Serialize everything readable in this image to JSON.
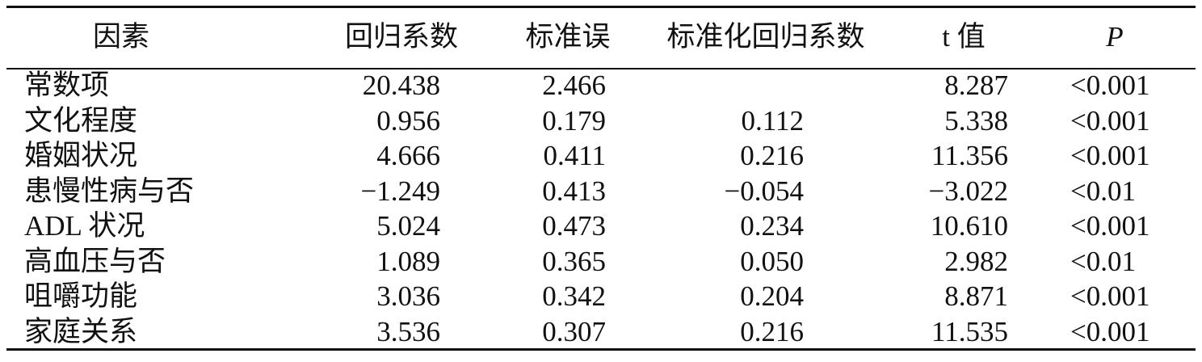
{
  "table": {
    "header": [
      "因素",
      "回归系数",
      "标准误",
      "标准化回归系数",
      "t 值",
      "P"
    ],
    "rows": [
      [
        "常数项",
        "20.438",
        "2.466",
        null,
        "8.287",
        "<0.001"
      ],
      [
        "文化程度",
        "0.956",
        "0.179",
        "0.112",
        "5.338",
        "<0.001"
      ],
      [
        "婚姻状况",
        "4.666",
        "0.411",
        "0.216",
        "11.356",
        "<0.001"
      ],
      [
        "患慢性病与否",
        "−1.249",
        "0.413",
        "−0.054",
        "−3.022",
        "<0.01"
      ],
      [
        "ADL 状况",
        "5.024",
        "0.473",
        "0.234",
        "10.610",
        "<0.001"
      ],
      [
        "高血压与否",
        "1.089",
        "0.365",
        "0.050",
        "2.982",
        "<0.01"
      ],
      [
        "咀嚼功能",
        "3.036",
        "0.342",
        "0.204",
        "8.871",
        "<0.001"
      ],
      [
        "家庭关系",
        "3.536",
        "0.307",
        "0.216",
        "11.535",
        "<0.001"
      ]
    ]
  }
}
